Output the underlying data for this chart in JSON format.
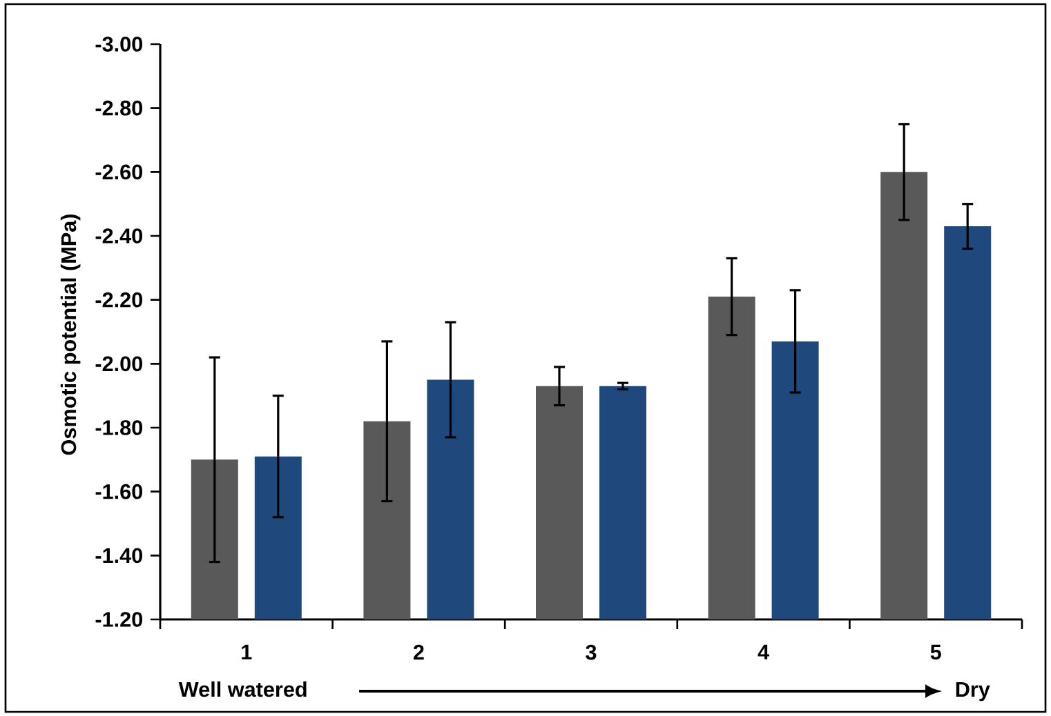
{
  "chart_data": {
    "type": "bar",
    "ylabel": "Osmotic potential (MPa)",
    "categories": [
      "1",
      "2",
      "3",
      "4",
      "5"
    ],
    "series": [
      {
        "color": "#595959",
        "values": [
          -1.7,
          -1.82,
          -1.93,
          -2.21,
          -2.6
        ],
        "errors": [
          0.32,
          0.25,
          0.06,
          0.12,
          0.15
        ]
      },
      {
        "color": "#1f497d",
        "values": [
          -1.71,
          -1.95,
          -1.93,
          -2.07,
          -2.43
        ],
        "errors": [
          0.19,
          0.18,
          0.01,
          0.16,
          0.07
        ]
      }
    ],
    "ylim": [
      -1.2,
      -3.0
    ],
    "yticks": [
      {
        "value": -3.0,
        "label": "-3.00"
      },
      {
        "value": -2.8,
        "label": "-2.80"
      },
      {
        "value": -2.6,
        "label": "-2.60"
      },
      {
        "value": -2.4,
        "label": "-2.40"
      },
      {
        "value": -2.2,
        "label": "-2.20"
      },
      {
        "value": -2.0,
        "label": "-2.00"
      },
      {
        "value": -1.8,
        "label": "-1.80"
      },
      {
        "value": -1.6,
        "label": "-1.60"
      },
      {
        "value": -1.4,
        "label": "-1.40"
      },
      {
        "value": -1.2,
        "label": "-1.20"
      }
    ],
    "annotations": [
      "Well watered",
      "Dry"
    ],
    "grid": false
  }
}
